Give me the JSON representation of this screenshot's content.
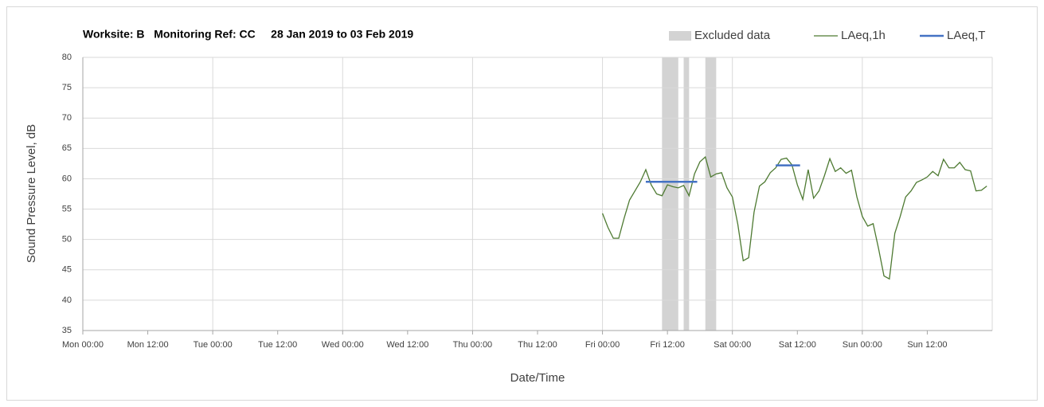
{
  "chart_data": {
    "type": "line",
    "title": "Worksite: B   Monitoring Ref: CC     28 Jan 2019 to 03 Feb 2019",
    "xlabel": "Date/Time",
    "ylabel": "Sound Pressure Level, dB",
    "xlim": [
      0,
      168
    ],
    "ylim": [
      35,
      80
    ],
    "yticks": [
      35,
      40,
      45,
      50,
      55,
      60,
      65,
      70,
      75,
      80
    ],
    "xticks": [
      {
        "value": 0,
        "label": "Mon 00:00"
      },
      {
        "value": 12,
        "label": "Mon 12:00"
      },
      {
        "value": 24,
        "label": "Tue 00:00"
      },
      {
        "value": 36,
        "label": "Tue 12:00"
      },
      {
        "value": 48,
        "label": "Wed 00:00"
      },
      {
        "value": 60,
        "label": "Wed 12:00"
      },
      {
        "value": 72,
        "label": "Thu 00:00"
      },
      {
        "value": 84,
        "label": "Thu 12:00"
      },
      {
        "value": 96,
        "label": "Fri 00:00"
      },
      {
        "value": 108,
        "label": "Fri 12:00"
      },
      {
        "value": 120,
        "label": "Sat 00:00"
      },
      {
        "value": 132,
        "label": "Sat 12:00"
      },
      {
        "value": 144,
        "label": "Sun 00:00"
      },
      {
        "value": 156,
        "label": "Sun 12:00"
      }
    ],
    "grid": true,
    "legend": "top",
    "excluded": {
      "name": "Excluded data",
      "color": "#d3d3d3",
      "ranges": [
        [
          107,
          110
        ],
        [
          111,
          112
        ],
        [
          115,
          117
        ]
      ]
    },
    "series": [
      {
        "name": "LAeq,1h",
        "color": "#4e7a32",
        "x": [
          96,
          97,
          98,
          99,
          100,
          101,
          102,
          103,
          104,
          105,
          106,
          107,
          108,
          109,
          110,
          111,
          112,
          113,
          114,
          115,
          116,
          117,
          118,
          119,
          120,
          121,
          122,
          123,
          124,
          125,
          126,
          127,
          128,
          129,
          130,
          131,
          132,
          133,
          134,
          135,
          136,
          137,
          138,
          139,
          140,
          141,
          142,
          143,
          144,
          145,
          146,
          147,
          148,
          149,
          150,
          151,
          152,
          153,
          154,
          155,
          156,
          157,
          158,
          159,
          160,
          161,
          162,
          163,
          164,
          165,
          166,
          167
        ],
        "values": [
          54.3,
          52,
          50.2,
          50.2,
          53.5,
          56.5,
          58,
          59.5,
          61.5,
          59,
          57.5,
          57.2,
          59,
          58.7,
          58.5,
          58.9,
          57.2,
          60.8,
          62.8,
          63.6,
          60.3,
          60.8,
          61,
          58.5,
          57,
          52.5,
          46.5,
          47,
          54.5,
          58.8,
          59.5,
          61,
          61.8,
          63.2,
          63.4,
          62.3,
          59,
          56.6,
          61.5,
          56.8,
          58,
          60.5,
          63.3,
          61.2,
          61.8,
          60.9,
          61.4,
          57,
          53.8,
          52.2,
          52.6,
          48.5,
          44,
          43.5,
          51,
          53.8,
          57,
          58,
          59.4,
          59.8,
          60.3,
          61.2,
          60.5,
          63.2,
          61.8,
          61.8,
          62.7,
          61.5,
          61.3,
          58,
          58.1,
          58.8
        ]
      },
      {
        "name": "LAeq,T",
        "color": "#4472c4",
        "x": [
          104,
          113.5,
          120,
          128,
          132.5
        ],
        "values": [
          59.5,
          59.5,
          null,
          62.2,
          62.2
        ]
      }
    ]
  }
}
